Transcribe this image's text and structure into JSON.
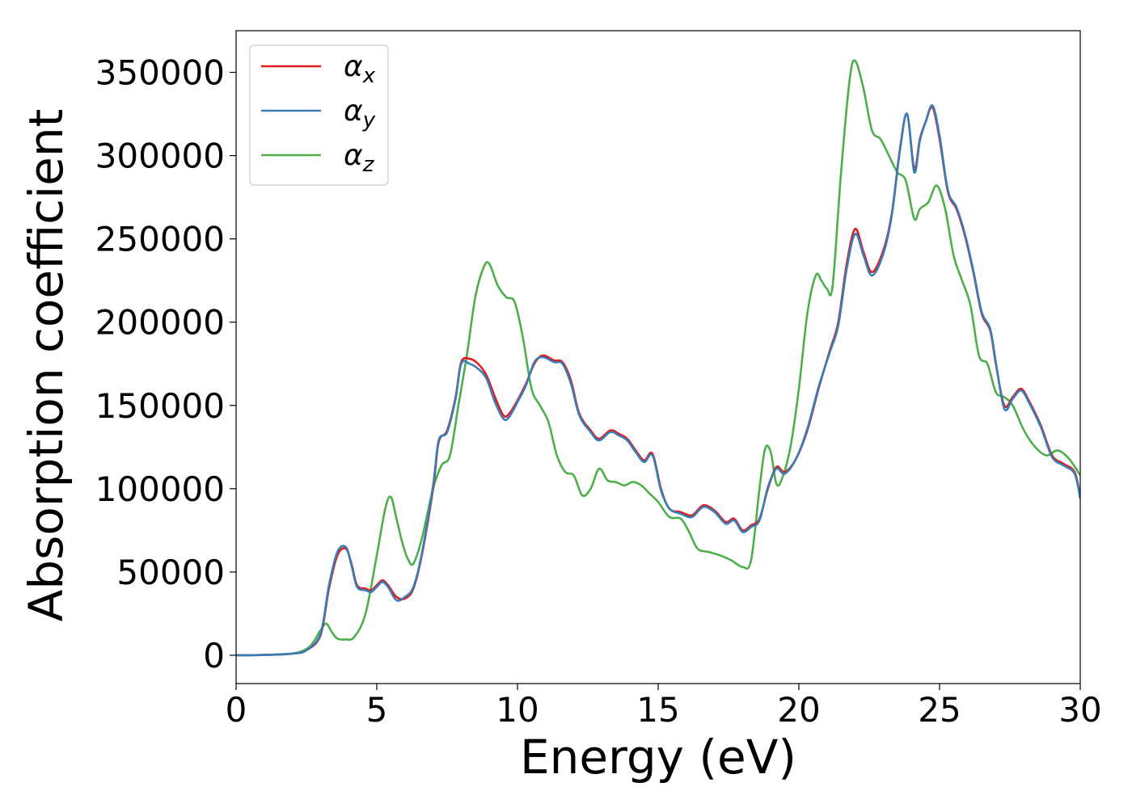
{
  "chart_data": {
    "type": "line",
    "xlabel": "Energy (eV)",
    "ylabel": "Absorption coefficient",
    "xlim": [
      0,
      30
    ],
    "ylim": [
      -17000,
      375000
    ],
    "xticks": [
      0,
      5,
      10,
      15,
      20,
      25,
      30
    ],
    "xtick_labels": [
      "0",
      "5",
      "10",
      "15",
      "20",
      "25",
      "30"
    ],
    "yticks": [
      0,
      50000,
      100000,
      150000,
      200000,
      250000,
      300000,
      350000
    ],
    "ytick_labels": [
      "0",
      "50000",
      "100000",
      "150000",
      "200000",
      "250000",
      "300000",
      "350000"
    ],
    "grid": false,
    "legend": "top-left",
    "series": [
      {
        "name": "α_x",
        "legend_main": "α",
        "legend_sub": "x",
        "color": "#e41a1c",
        "x": [
          0,
          1,
          2,
          2.5,
          3,
          3.3,
          3.6,
          3.9,
          4.1,
          4.3,
          4.6,
          4.8,
          5.0,
          5.2,
          5.4,
          5.7,
          6.0,
          6.3,
          6.6,
          7.0,
          7.2,
          7.5,
          7.8,
          8.0,
          8.3,
          8.6,
          8.9,
          9.2,
          9.5,
          9.7,
          10.0,
          10.3,
          10.6,
          10.9,
          11.3,
          11.6,
          11.9,
          12.2,
          12.6,
          12.9,
          13.3,
          13.6,
          13.9,
          14.2,
          14.5,
          14.8,
          15.1,
          15.4,
          15.8,
          16.2,
          16.6,
          17.0,
          17.4,
          17.7,
          18.0,
          18.3,
          18.6,
          18.9,
          19.2,
          19.5,
          19.9,
          20.3,
          20.7,
          21.1,
          21.4,
          21.7,
          22.0,
          22.3,
          22.6,
          23.0,
          23.3,
          23.6,
          23.85,
          24.1,
          24.3,
          24.5,
          24.75,
          25.0,
          25.3,
          25.6,
          25.9,
          26.2,
          26.5,
          26.8,
          27.0,
          27.3,
          27.6,
          27.9,
          28.2,
          28.6,
          29.0,
          29.4,
          29.8,
          30.0
        ],
        "y": [
          0,
          200,
          1000,
          3000,
          12000,
          40000,
          60000,
          64000,
          55000,
          42000,
          40000,
          39000,
          42000,
          45000,
          42000,
          35000,
          34000,
          40000,
          60000,
          100000,
          128000,
          135000,
          155000,
          176000,
          178000,
          175000,
          168000,
          155000,
          144000,
          145000,
          153000,
          163000,
          175000,
          180000,
          177000,
          176000,
          165000,
          145000,
          135000,
          130000,
          135000,
          133000,
          130000,
          123000,
          117000,
          121000,
          100000,
          88000,
          86000,
          84000,
          90000,
          87000,
          80000,
          82000,
          75000,
          78000,
          82000,
          100000,
          113000,
          110000,
          118000,
          135000,
          160000,
          183000,
          200000,
          235000,
          256000,
          242000,
          230000,
          243000,
          265000,
          305000,
          325000,
          292000,
          310000,
          320000,
          329000,
          310000,
          278000,
          268000,
          252000,
          230000,
          205000,
          195000,
          175000,
          150000,
          155000,
          160000,
          152000,
          138000,
          120000,
          115000,
          110000,
          95000
        ]
      },
      {
        "name": "α_y",
        "legend_main": "α",
        "legend_sub": "y",
        "color": "#377eb8",
        "x": [
          0,
          1,
          2,
          2.5,
          3,
          3.3,
          3.6,
          3.9,
          4.1,
          4.3,
          4.6,
          4.8,
          5.0,
          5.2,
          5.4,
          5.7,
          6.0,
          6.3,
          6.6,
          7.0,
          7.2,
          7.5,
          7.8,
          8.0,
          8.3,
          8.6,
          8.9,
          9.2,
          9.5,
          9.7,
          10.0,
          10.3,
          10.6,
          10.9,
          11.3,
          11.6,
          11.9,
          12.2,
          12.6,
          12.9,
          13.3,
          13.6,
          13.9,
          14.2,
          14.5,
          14.8,
          15.1,
          15.4,
          15.8,
          16.2,
          16.6,
          17.0,
          17.4,
          17.7,
          18.0,
          18.3,
          18.6,
          18.9,
          19.2,
          19.5,
          19.9,
          20.3,
          20.7,
          21.1,
          21.4,
          21.7,
          22.0,
          22.3,
          22.6,
          23.0,
          23.3,
          23.6,
          23.85,
          24.1,
          24.3,
          24.5,
          24.75,
          25.0,
          25.3,
          25.6,
          25.9,
          26.2,
          26.5,
          26.8,
          27.0,
          27.3,
          27.6,
          27.9,
          28.2,
          28.6,
          29.0,
          29.4,
          29.8,
          30.0
        ],
        "y": [
          0,
          200,
          1000,
          3000,
          13000,
          42000,
          62000,
          65000,
          54000,
          41000,
          39000,
          38000,
          41000,
          44000,
          41000,
          33000,
          35000,
          41000,
          61000,
          102000,
          129000,
          134000,
          154000,
          175000,
          175000,
          172000,
          166000,
          152000,
          142000,
          143000,
          152000,
          162000,
          176000,
          179000,
          176000,
          175000,
          163000,
          144000,
          134000,
          129000,
          134000,
          132000,
          129000,
          122000,
          116000,
          120000,
          99000,
          88000,
          85000,
          83000,
          89000,
          86000,
          79000,
          81000,
          74000,
          77000,
          81000,
          101000,
          112000,
          109000,
          118000,
          136000,
          161000,
          182000,
          198000,
          232000,
          253000,
          240000,
          228000,
          241000,
          264000,
          304000,
          325000,
          290000,
          309000,
          320000,
          330000,
          312000,
          279000,
          269000,
          253000,
          231000,
          206000,
          196000,
          176000,
          148000,
          154000,
          159000,
          151000,
          137000,
          119000,
          114000,
          109000,
          94000
        ]
      },
      {
        "name": "α_z",
        "legend_main": "α",
        "legend_sub": "z",
        "color": "#4daf4a",
        "x": [
          0,
          1,
          2,
          2.6,
          3.0,
          3.2,
          3.4,
          3.6,
          3.9,
          4.2,
          4.6,
          5.0,
          5.3,
          5.5,
          5.7,
          5.9,
          6.1,
          6.3,
          6.6,
          7.0,
          7.3,
          7.6,
          7.9,
          8.2,
          8.5,
          8.8,
          9.0,
          9.3,
          9.6,
          9.9,
          10.2,
          10.5,
          10.8,
          11.1,
          11.4,
          11.7,
          12.0,
          12.3,
          12.6,
          12.9,
          13.2,
          13.5,
          13.8,
          14.1,
          14.4,
          14.7,
          15.0,
          15.4,
          15.8,
          16.1,
          16.4,
          16.8,
          17.2,
          17.6,
          18.0,
          18.3,
          18.6,
          18.8,
          19.0,
          19.2,
          19.4,
          19.7,
          20.0,
          20.3,
          20.6,
          20.8,
          21.0,
          21.2,
          21.5,
          21.8,
          22.0,
          22.3,
          22.6,
          22.9,
          23.2,
          23.5,
          23.8,
          24.1,
          24.3,
          24.6,
          24.9,
          25.2,
          25.5,
          25.8,
          26.1,
          26.4,
          26.7,
          27.0,
          27.3,
          27.6,
          28.0,
          28.4,
          28.8,
          29.2,
          29.6,
          30.0
        ],
        "y": [
          0,
          200,
          1000,
          5000,
          15000,
          19000,
          14000,
          10000,
          9500,
          11000,
          25000,
          60000,
          88000,
          95000,
          82000,
          68000,
          58000,
          55000,
          70000,
          100000,
          114000,
          120000,
          150000,
          180000,
          215000,
          233000,
          235000,
          222000,
          215000,
          212000,
          190000,
          160000,
          150000,
          140000,
          120000,
          110000,
          108000,
          96000,
          100000,
          112000,
          105000,
          104000,
          102000,
          104000,
          102000,
          97000,
          92000,
          83000,
          82000,
          74000,
          64000,
          62000,
          60000,
          57000,
          53000,
          57000,
          100000,
          124000,
          122000,
          103000,
          106000,
          125000,
          160000,
          205000,
          228000,
          225000,
          220000,
          222000,
          290000,
          345000,
          357000,
          340000,
          315000,
          310000,
          300000,
          290000,
          285000,
          262000,
          268000,
          272000,
          282000,
          268000,
          240000,
          225000,
          210000,
          180000,
          175000,
          158000,
          155000,
          150000,
          135000,
          125000,
          120000,
          123000,
          118000,
          108000
        ]
      }
    ]
  }
}
